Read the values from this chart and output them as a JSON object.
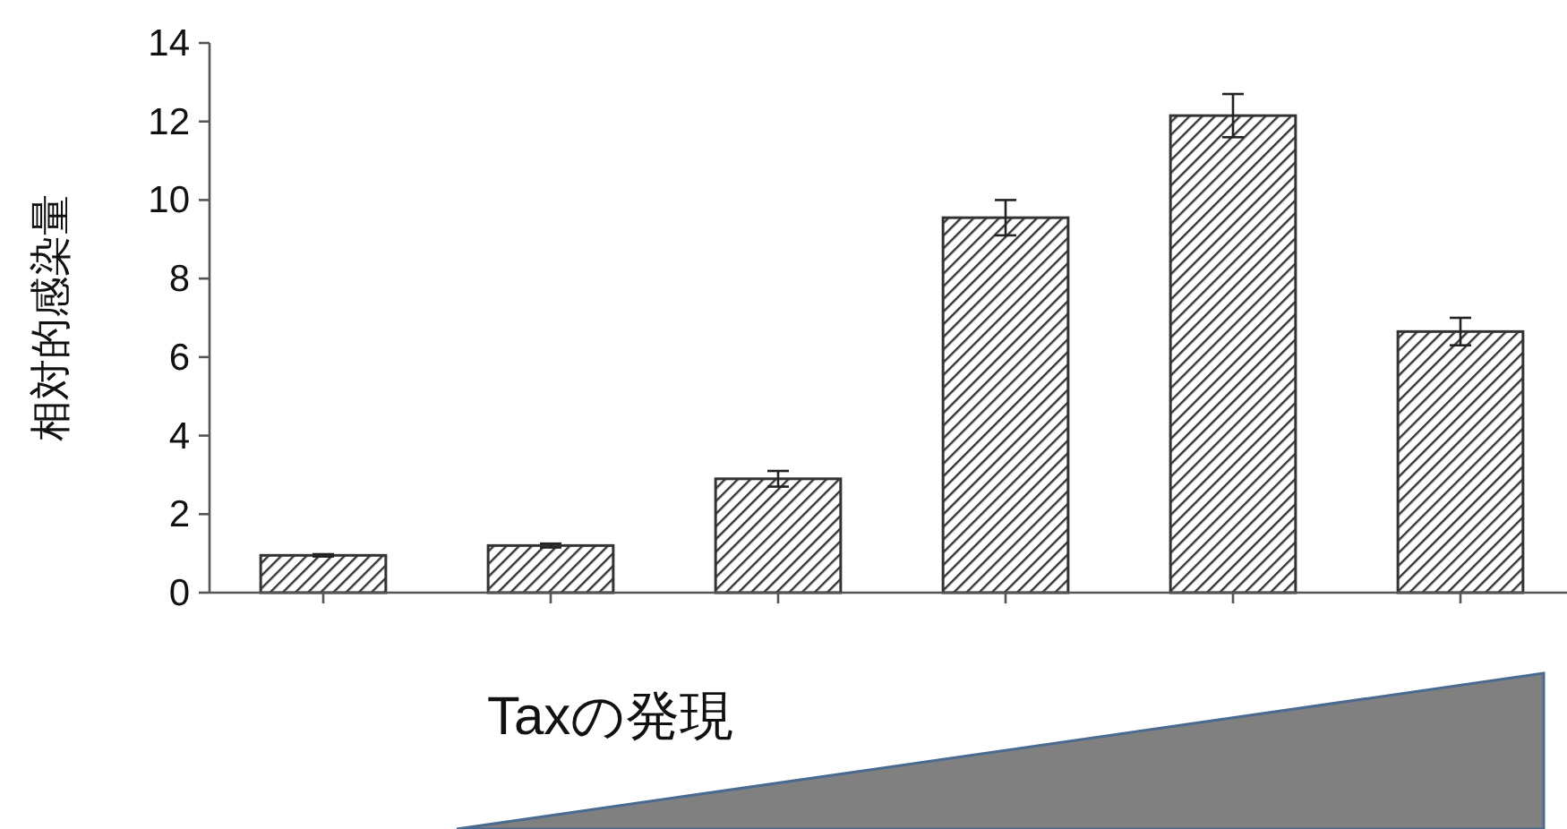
{
  "chart_data": {
    "type": "bar",
    "ylabel": "相対的感染量",
    "categories": [
      null,
      null,
      null,
      null,
      null,
      null
    ],
    "values": [
      0.95,
      1.2,
      2.9,
      9.55,
      12.15,
      6.65
    ],
    "errors": [
      0.03,
      0.05,
      0.2,
      0.45,
      0.55,
      0.35
    ],
    "color": "#333333",
    "ylim": [
      0,
      14
    ],
    "yticks": [
      0,
      2,
      4,
      6,
      8,
      10,
      12,
      14
    ],
    "annotations": [
      "Taxの発現"
    ]
  }
}
